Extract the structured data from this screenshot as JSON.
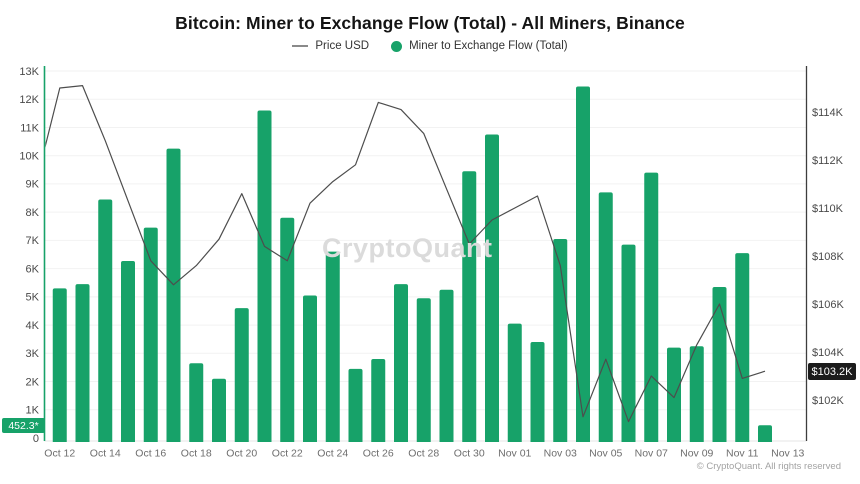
{
  "header": {
    "title": "Bitcoin: Miner to Exchange Flow (Total) - All Miners, Binance"
  },
  "legend": {
    "price_label": "Price USD",
    "flow_label": "Miner to Exchange Flow (Total)"
  },
  "badges": {
    "flow_latest": "452.3*",
    "price_latest": "$103.2K"
  },
  "watermark": "CryptoQuant",
  "footer": {
    "copyright": "© CryptoQuant. All rights reserved"
  },
  "colors": {
    "flow_green": "#17a269",
    "price_line": "#4d4d4d",
    "badge_flow_bg": "#17a269",
    "badge_price_bg": "#1c1c1c",
    "grid": "#f2f2f2",
    "axis_left": "#17a269",
    "axis_right": "#3d3d3d",
    "axis_bottom": "#e6e6e6"
  },
  "chart_data": {
    "type": "bar",
    "subtype": "bar+line dual-axis",
    "title": "Bitcoin: Miner to Exchange Flow (Total) - All Miners, Binance",
    "categories": [
      "Oct 11",
      "Oct 12",
      "Oct 13",
      "Oct 14",
      "Oct 15",
      "Oct 16",
      "Oct 17",
      "Oct 18",
      "Oct 19",
      "Oct 20",
      "Oct 21",
      "Oct 22",
      "Oct 23",
      "Oct 24",
      "Oct 25",
      "Oct 26",
      "Oct 27",
      "Oct 28",
      "Oct 29",
      "Oct 30",
      "Oct 31",
      "Nov 01",
      "Nov 02",
      "Nov 03",
      "Nov 04",
      "Nov 05",
      "Nov 06",
      "Nov 07",
      "Nov 08",
      "Nov 09",
      "Nov 10",
      "Nov 11",
      "Nov 12"
    ],
    "series": [
      {
        "name": "Miner to Exchange Flow (Total)",
        "type": "bar",
        "axis": "left",
        "unit": "BTC",
        "values": [
          null,
          5300,
          5450,
          8450,
          6270,
          7450,
          10250,
          2650,
          2100,
          4600,
          11600,
          7800,
          5050,
          6600,
          2450,
          2800,
          5450,
          4950,
          5250,
          9450,
          10750,
          4050,
          3400,
          7050,
          12450,
          8700,
          6850,
          9400,
          3200,
          3250,
          5350,
          6550,
          452.3
        ]
      },
      {
        "name": "Price USD",
        "type": "line",
        "axis": "right",
        "unit": "thousand USD",
        "values": [
          111.2,
          115.0,
          115.1,
          112.8,
          110.3,
          107.8,
          106.8,
          107.6,
          108.7,
          110.6,
          108.4,
          107.8,
          110.2,
          111.1,
          111.8,
          114.4,
          114.1,
          113.1,
          110.8,
          108.5,
          109.5,
          110.0,
          110.5,
          107.6,
          101.3,
          103.7,
          101.1,
          103.0,
          102.1,
          104.3,
          106.0,
          102.9,
          103.2
        ]
      }
    ],
    "left_axis": {
      "range": [
        0,
        13000
      ],
      "ticks": [
        "0",
        "1K",
        "2K",
        "3K",
        "4K",
        "5K",
        "6K",
        "7K",
        "8K",
        "9K",
        "10K",
        "11K",
        "12K",
        "13K"
      ],
      "latest_value": 452.3
    },
    "right_axis": {
      "ticks": [
        {
          "v": 114,
          "label": "$114K"
        },
        {
          "v": 112,
          "label": "$112K"
        },
        {
          "v": 110,
          "label": "$110K"
        },
        {
          "v": 108,
          "label": "$108K"
        },
        {
          "v": 106,
          "label": "$106K"
        },
        {
          "v": 104,
          "label": "$104K"
        },
        {
          "v": 102,
          "label": "$102K"
        }
      ],
      "latest_value_label": "$103.2K"
    },
    "x_ticks": [
      {
        "i": 1,
        "label": "Oct 12"
      },
      {
        "i": 3,
        "label": "Oct 14"
      },
      {
        "i": 5,
        "label": "Oct 16"
      },
      {
        "i": 7,
        "label": "Oct 18"
      },
      {
        "i": 9,
        "label": "Oct 20"
      },
      {
        "i": 11,
        "label": "Oct 22"
      },
      {
        "i": 13,
        "label": "Oct 24"
      },
      {
        "i": 15,
        "label": "Oct 26"
      },
      {
        "i": 17,
        "label": "Oct 28"
      },
      {
        "i": 19,
        "label": "Oct 30"
      },
      {
        "i": 21,
        "label": "Nov 01"
      },
      {
        "i": 23,
        "label": "Nov 03"
      },
      {
        "i": 25,
        "label": "Nov 05"
      },
      {
        "i": 27,
        "label": "Nov 07"
      },
      {
        "i": 29,
        "label": "Nov 09"
      },
      {
        "i": 31,
        "label": "Nov 11"
      },
      {
        "i": 33,
        "label": "Nov 13"
      }
    ],
    "legend_position": "top-center",
    "grid": "horizontal-only"
  }
}
